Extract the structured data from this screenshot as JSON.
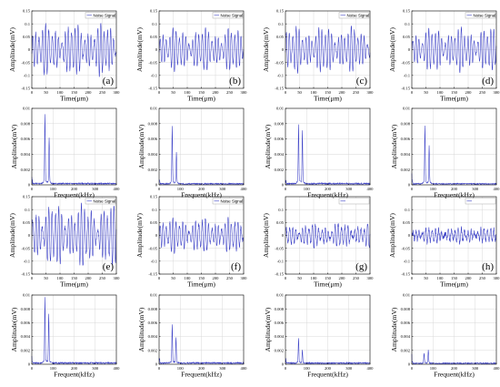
{
  "chart_data": [
    {
      "type": "line",
      "panel": "time",
      "x": {
        "label": "Time(μm)",
        "ticks": [
          "0",
          "50",
          "100",
          "150",
          "200",
          "250",
          "300"
        ],
        "range": [
          0,
          300
        ]
      },
      "y": {
        "label": "Amplitude(mV)",
        "ticks": [
          "0.15",
          "0.1",
          "0.05",
          "0",
          "-0.05",
          "-0.1",
          "-0.15"
        ],
        "range": [
          -0.15,
          0.15
        ]
      },
      "grid": true,
      "legend": {
        "label": "Noise Signal",
        "position": "top-right"
      },
      "tag": "(a)",
      "signal": {
        "amplitude": 0.062,
        "noise": 0.008,
        "cycles": 26,
        "seed": 11
      },
      "series": [
        {
          "name": "Noise Signal"
        }
      ]
    },
    {
      "type": "line",
      "panel": "time",
      "x": {
        "label": "Time(μm)",
        "ticks": [
          "0",
          "50",
          "100",
          "150",
          "200",
          "250",
          "300"
        ],
        "range": [
          0,
          300
        ]
      },
      "y": {
        "label": "Amplitude(mV)",
        "ticks": [
          "0.15",
          "0.1",
          "0.05",
          "0",
          "-0.05",
          "-0.1",
          "-0.15"
        ],
        "range": [
          -0.15,
          0.15
        ]
      },
      "grid": true,
      "legend": {
        "label": "Noise Signal",
        "position": "top-right"
      },
      "tag": "(b)",
      "signal": {
        "amplitude": 0.052,
        "noise": 0.006,
        "cycles": 26,
        "seed": 23
      },
      "series": [
        {
          "name": "Noise Signal"
        }
      ]
    },
    {
      "type": "line",
      "panel": "time",
      "x": {
        "label": "Time(μm)",
        "ticks": [
          "0",
          "50",
          "100",
          "150",
          "200",
          "250",
          "300"
        ],
        "range": [
          0,
          300
        ]
      },
      "y": {
        "label": "Amplitude(mV)",
        "ticks": [
          "0.15",
          "0.1",
          "0.05",
          "0",
          "-0.05",
          "-0.1",
          "-0.15"
        ],
        "range": [
          -0.15,
          0.15
        ]
      },
      "grid": true,
      "legend": {
        "label": "Noise Signal",
        "position": "top-right"
      },
      "tag": "(c)",
      "signal": {
        "amplitude": 0.055,
        "noise": 0.007,
        "cycles": 26,
        "seed": 37
      },
      "series": [
        {
          "name": "Noise Signal"
        }
      ]
    },
    {
      "type": "line",
      "panel": "time",
      "x": {
        "label": "Time(μm)",
        "ticks": [
          "0",
          "50",
          "100",
          "150",
          "200",
          "250",
          "300"
        ],
        "range": [
          0,
          300
        ]
      },
      "y": {
        "label": "Amplitude(mV)",
        "ticks": [
          "0.15",
          "0.1",
          "0.05",
          "0",
          "-0.05",
          "-0.1",
          "-0.15"
        ],
        "range": [
          -0.15,
          0.15
        ]
      },
      "grid": true,
      "legend": {
        "label": "Noise Signal",
        "position": "top-right"
      },
      "tag": "(d)",
      "signal": {
        "amplitude": 0.052,
        "noise": 0.006,
        "cycles": 26,
        "seed": 41
      },
      "series": [
        {
          "name": "Noise Signal"
        }
      ]
    },
    {
      "type": "line",
      "panel": "freq",
      "x": {
        "label": "Frequent(kHz)",
        "ticks": [
          "0",
          "100",
          "200",
          "300",
          "400"
        ],
        "range": [
          0,
          400
        ]
      },
      "y": {
        "label": "Amplitude(mV)",
        "ticks": [
          "0.01",
          "0.008",
          "0.006",
          "0.004",
          "0.002",
          "0"
        ],
        "range": [
          0,
          0.01
        ]
      },
      "grid": true,
      "peaks": [
        {
          "x": 62,
          "y": 0.0086
        },
        {
          "x": 82,
          "y": 0.0058
        }
      ],
      "floor": 0.00018,
      "seed": 5,
      "series": [
        {
          "name": "spectrum"
        }
      ]
    },
    {
      "type": "line",
      "panel": "freq",
      "x": {
        "label": "Frequent(kHz)",
        "ticks": [
          "0",
          "100",
          "200",
          "300",
          "400"
        ],
        "range": [
          0,
          400
        ]
      },
      "y": {
        "label": "Amplitude(mV)",
        "ticks": [
          "0.01",
          "0.008",
          "0.006",
          "0.004",
          "0.002",
          "0"
        ],
        "range": [
          0,
          0.01
        ]
      },
      "grid": true,
      "peaks": [
        {
          "x": 62,
          "y": 0.0072
        },
        {
          "x": 82,
          "y": 0.004
        }
      ],
      "floor": 0.00015,
      "seed": 6,
      "series": [
        {
          "name": "spectrum"
        }
      ]
    },
    {
      "type": "line",
      "panel": "freq",
      "x": {
        "label": "Frequent(kHz)",
        "ticks": [
          "0",
          "100",
          "200",
          "300",
          "400"
        ],
        "range": [
          0,
          400
        ]
      },
      "y": {
        "label": "Amplitude(mV)",
        "ticks": [
          "0.01",
          "0.008",
          "0.006",
          "0.004",
          "0.002",
          "0"
        ],
        "range": [
          0,
          0.01
        ]
      },
      "grid": true,
      "peaks": [
        {
          "x": 62,
          "y": 0.0074
        },
        {
          "x": 80,
          "y": 0.0066
        }
      ],
      "floor": 0.00018,
      "seed": 7,
      "series": [
        {
          "name": "spectrum"
        }
      ]
    },
    {
      "type": "line",
      "panel": "freq",
      "x": {
        "label": "Frequent(kHz)",
        "ticks": [
          "0",
          "100",
          "200",
          "300",
          "400"
        ],
        "range": [
          0,
          400
        ]
      },
      "y": {
        "label": "Amplitude(mV)",
        "ticks": [
          "0.01",
          "0.008",
          "0.006",
          "0.004",
          "0.002",
          "0"
        ],
        "range": [
          0,
          0.01
        ]
      },
      "grid": true,
      "peaks": [
        {
          "x": 62,
          "y": 0.0073
        },
        {
          "x": 82,
          "y": 0.0048
        }
      ],
      "floor": 0.00015,
      "seed": 8,
      "series": [
        {
          "name": "spectrum"
        }
      ]
    },
    {
      "type": "line",
      "panel": "time",
      "x": {
        "label": "Time(μm)",
        "ticks": [
          "0",
          "50",
          "100",
          "150",
          "200",
          "250",
          "300"
        ],
        "range": [
          0,
          300
        ]
      },
      "y": {
        "label": "Amplitude(mV)",
        "ticks": [
          "0.15",
          "0.1",
          "0.05",
          "0",
          "-0.05",
          "-0.1",
          "-0.15"
        ],
        "range": [
          -0.15,
          0.15
        ]
      },
      "grid": true,
      "legend": {
        "label": "Noise Signal",
        "position": "top-right"
      },
      "tag": "(e)",
      "signal": {
        "amplitude": 0.075,
        "noise": 0.01,
        "cycles": 26,
        "seed": 53
      },
      "series": [
        {
          "name": "Noise Signal"
        }
      ]
    },
    {
      "type": "line",
      "panel": "time",
      "x": {
        "label": "Time(μm)",
        "ticks": [
          "0",
          "50",
          "100",
          "150",
          "200",
          "250",
          "300"
        ],
        "range": [
          0,
          300
        ]
      },
      "y": {
        "label": "Amplitude(mV)",
        "ticks": [
          "0.15",
          "0.1",
          "0.05",
          "0",
          "-0.05",
          "-0.1",
          "-0.15"
        ],
        "range": [
          -0.15,
          0.15
        ]
      },
      "grid": true,
      "legend": {
        "label": "Noise Signal",
        "position": "top-right"
      },
      "tag": "(f)",
      "signal": {
        "amplitude": 0.042,
        "noise": 0.008,
        "cycles": 26,
        "seed": 61
      },
      "series": [
        {
          "name": "Noise Signal"
        }
      ]
    },
    {
      "type": "line",
      "panel": "time",
      "x": {
        "label": "Time(μm)",
        "ticks": [
          "0",
          "50",
          "100",
          "150",
          "200",
          "250",
          "300"
        ],
        "range": [
          0,
          300
        ]
      },
      "y": {
        "label": "Amplitude(mV)",
        "ticks": [
          "0.1",
          "0.05",
          "0",
          "-0.05",
          "-0.1",
          "-0.15"
        ],
        "range": [
          -0.15,
          0.15
        ]
      },
      "grid": true,
      "legend": {
        "label": "",
        "position": "top-right"
      },
      "tag": "(g)",
      "signal": {
        "amplitude": 0.028,
        "noise": 0.009,
        "cycles": 26,
        "seed": 71
      },
      "series": [
        {
          "name": ""
        }
      ]
    },
    {
      "type": "line",
      "panel": "time",
      "x": {
        "label": "Time(μm)",
        "ticks": [
          "0",
          "50",
          "100",
          "150",
          "200",
          "250",
          "300"
        ],
        "range": [
          0,
          300
        ]
      },
      "y": {
        "label": "Amplitude(mV)",
        "ticks": [
          "0.1",
          "0.05",
          "0",
          "-0.05",
          "-0.1",
          "-0.15"
        ],
        "range": [
          -0.15,
          0.15
        ]
      },
      "grid": true,
      "legend": {
        "label": "",
        "position": "top-right"
      },
      "tag": "(h)",
      "signal": {
        "amplitude": 0.018,
        "noise": 0.01,
        "cycles": 26,
        "seed": 79
      },
      "series": [
        {
          "name": ""
        }
      ]
    },
    {
      "type": "line",
      "panel": "freq",
      "x": {
        "label": "Frequent(kHz)",
        "ticks": [
          "0",
          "100",
          "200",
          "300",
          "400"
        ],
        "range": [
          0,
          400
        ]
      },
      "y": {
        "label": "Amplitude(mV)",
        "ticks": [
          "0.01",
          "0.008",
          "0.006",
          "0.004",
          "0.002",
          "0"
        ],
        "range": [
          0,
          0.01
        ]
      },
      "grid": true,
      "peaks": [
        {
          "x": 62,
          "y": 0.009
        },
        {
          "x": 80,
          "y": 0.0068
        }
      ],
      "floor": 0.0002,
      "seed": 9,
      "series": [
        {
          "name": "spectrum"
        }
      ]
    },
    {
      "type": "line",
      "panel": "freq",
      "x": {
        "label": "Frequent(kHz)",
        "ticks": [
          "0",
          "100",
          "200",
          "300",
          "400"
        ],
        "range": [
          0,
          400
        ]
      },
      "y": {
        "label": "Amplitude(mV)",
        "ticks": [
          "0.01",
          "0.008",
          "0.006",
          "0.004",
          "0.002",
          "0"
        ],
        "range": [
          0,
          0.01
        ]
      },
      "grid": true,
      "peaks": [
        {
          "x": 62,
          "y": 0.0053
        },
        {
          "x": 80,
          "y": 0.0036
        }
      ],
      "floor": 0.0002,
      "seed": 10,
      "series": [
        {
          "name": "spectrum"
        }
      ]
    },
    {
      "type": "line",
      "panel": "freq",
      "x": {
        "label": "Frequent(kHz)",
        "ticks": [
          "0",
          "100",
          "200",
          "300",
          "400"
        ],
        "range": [
          0,
          400
        ]
      },
      "y": {
        "label": "Amplitude(mV)",
        "ticks": [
          "0.01",
          "0.008",
          "0.006",
          "0.004",
          "0.002",
          "0"
        ],
        "range": [
          0,
          0.01
        ]
      },
      "grid": true,
      "peaks": [
        {
          "x": 62,
          "y": 0.0035
        },
        {
          "x": 80,
          "y": 0.0018
        }
      ],
      "floor": 0.00018,
      "seed": 12,
      "series": [
        {
          "name": "spectrum"
        }
      ]
    },
    {
      "type": "line",
      "panel": "freq",
      "x": {
        "label": "Frequent(kHz)",
        "ticks": [
          "0",
          "100",
          "200",
          "300",
          "400"
        ],
        "range": [
          0,
          400
        ]
      },
      "y": {
        "label": "Amplitude(mV)",
        "ticks": [
          "0.01",
          "0.008",
          "0.006",
          "0.004",
          "0.002",
          "0"
        ],
        "range": [
          0,
          0.01
        ]
      },
      "grid": true,
      "peaks": [
        {
          "x": 58,
          "y": 0.0014
        },
        {
          "x": 78,
          "y": 0.0018
        }
      ],
      "floor": 0.00015,
      "seed": 13,
      "series": [
        {
          "name": "spectrum"
        }
      ]
    }
  ],
  "colors": {
    "line": "#3a3fc6",
    "grid": "#d8d8d8",
    "axis": "#000000"
  }
}
